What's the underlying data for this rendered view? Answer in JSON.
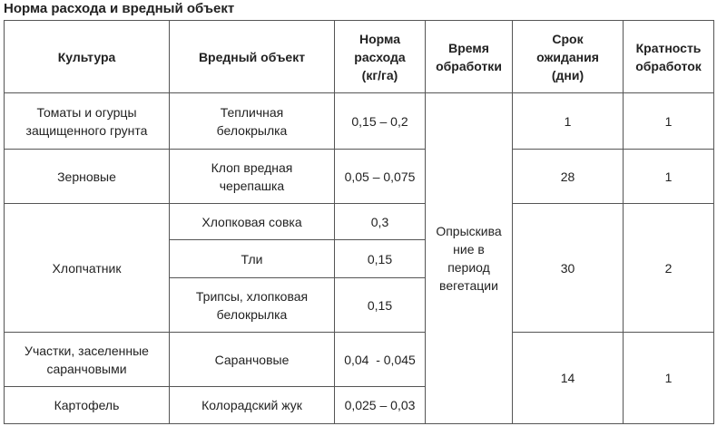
{
  "title": "Норма расхода и вредный объект",
  "headers": {
    "crop": "Культура",
    "pest": "Вредный объект",
    "rate": "Норма\nрасхода\n(кг/га)",
    "time": "Время\nобработки",
    "wait": "Срок\nожидания\n(дни)",
    "count": "Кратность\nобработок"
  },
  "rows": {
    "tomatoes": {
      "crop": "Томаты и огурцы\nзащищенного грунта",
      "pest": "Тепличная\nбелокрылка",
      "rate": "0,15 – 0,2",
      "wait": "1",
      "count": "1"
    },
    "grain": {
      "crop": "Зерновые",
      "pest": "Клоп вредная\nчерепашка",
      "rate": "0,05 – 0,075",
      "wait": "28",
      "count": "1"
    },
    "cotton": {
      "crop": "Хлопчатник",
      "pests": [
        {
          "pest": "Хлопковая совка",
          "rate": "0,3"
        },
        {
          "pest": "Тли",
          "rate": "0,15"
        },
        {
          "pest": "Трипсы, хлопковая\nбелокрылка",
          "rate": "0,15"
        }
      ],
      "wait": "30",
      "count": "2"
    },
    "locust": {
      "crop": "Участки, заселенные\nсаранчовыми",
      "pest": "Саранчовые",
      "rate": "0,04  - 0,045"
    },
    "potato": {
      "crop": "Картофель",
      "pest": "Колорадский жук",
      "rate": "0,025 – 0,03"
    },
    "locust_potato_wait": "14",
    "locust_potato_count": "1"
  },
  "treatment_time": "Опрыскива\nние в\nпериод\nвегетации"
}
